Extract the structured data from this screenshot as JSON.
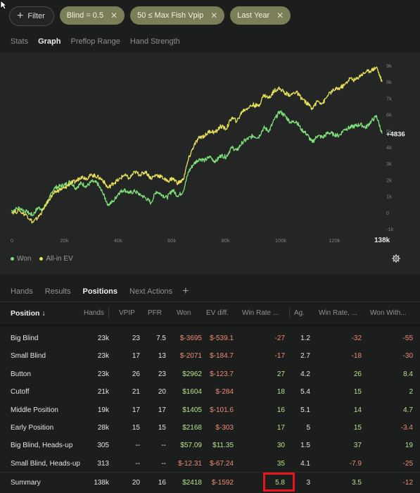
{
  "filters": {
    "filter_label": "Filter",
    "chips": [
      {
        "label": "Blind = 0.5"
      },
      {
        "label": "50 ≤ Max Fish Vpip"
      },
      {
        "label": "Last Year"
      }
    ]
  },
  "view_tabs": [
    "Stats",
    "Graph",
    "Preflop Range",
    "Hand Strength"
  ],
  "active_view_tab": "Graph",
  "chart_data": {
    "type": "line",
    "x_ticks": [
      "0",
      "20k",
      "40k",
      "60k",
      "80k",
      "100k",
      "120k",
      "138k"
    ],
    "y_ticks": [
      "9k",
      "8k",
      "7k",
      "6k",
      "5k",
      "4k",
      "3k",
      "2k",
      "1k",
      "0",
      "-1k"
    ],
    "xlim": [
      0,
      138000
    ],
    "ylim": [
      -1000,
      9000
    ],
    "end_label": "+4836",
    "series": [
      {
        "name": "Won",
        "color": "#7fe07a",
        "x": [
          0,
          3000,
          6000,
          8000,
          10000,
          12000,
          14000,
          16000,
          18000,
          20000,
          22000,
          24000,
          26000,
          28000,
          30000,
          32000,
          34000,
          36000,
          38000,
          40000,
          42000,
          44000,
          46000,
          48000,
          50000,
          52000,
          54000,
          56000,
          58000,
          60000,
          62000,
          64000,
          66000,
          68000,
          70000,
          72000,
          74000,
          76000,
          78000,
          80000,
          82000,
          84000,
          86000,
          88000,
          90000,
          92000,
          94000,
          96000,
          98000,
          100000,
          102000,
          104000,
          106000,
          108000,
          110000,
          112000,
          114000,
          116000,
          118000,
          120000,
          122000,
          124000,
          126000,
          128000,
          130000,
          132000,
          134000,
          136000,
          138000
        ],
        "y": [
          100,
          300,
          0,
          -150,
          300,
          200,
          800,
          1500,
          1600,
          1700,
          1900,
          1500,
          1800,
          1600,
          1900,
          1800,
          1200,
          500,
          700,
          1200,
          1400,
          1200,
          1300,
          1100,
          900,
          600,
          1300,
          1100,
          900,
          1400,
          1000,
          1300,
          2500,
          3000,
          3300,
          3200,
          3400,
          3100,
          3500,
          3400,
          4000,
          3800,
          4300,
          4500,
          4700,
          4600,
          5200,
          5000,
          5700,
          6200,
          5900,
          5500,
          5600,
          5100,
          4800,
          4300,
          4700,
          4600,
          4900,
          4800,
          4700,
          5100,
          5200,
          5300,
          5400,
          5200,
          5600,
          5900,
          4836
        ]
      },
      {
        "name": "All-in EV",
        "color": "#e8e05a",
        "x": [
          0,
          3000,
          6000,
          8000,
          10000,
          12000,
          14000,
          16000,
          18000,
          20000,
          22000,
          24000,
          26000,
          28000,
          30000,
          32000,
          34000,
          36000,
          38000,
          40000,
          42000,
          44000,
          46000,
          48000,
          50000,
          52000,
          54000,
          56000,
          58000,
          60000,
          62000,
          64000,
          66000,
          68000,
          70000,
          72000,
          74000,
          76000,
          78000,
          80000,
          82000,
          84000,
          86000,
          88000,
          90000,
          92000,
          94000,
          96000,
          98000,
          100000,
          102000,
          104000,
          106000,
          108000,
          110000,
          112000,
          114000,
          116000,
          118000,
          120000,
          122000,
          124000,
          126000,
          128000,
          130000,
          132000,
          134000,
          136000,
          138000
        ],
        "y": [
          0,
          100,
          -200,
          -600,
          -300,
          200,
          800,
          1200,
          1400,
          1500,
          1800,
          1900,
          2200,
          2100,
          2300,
          2200,
          2000,
          1500,
          1800,
          2000,
          2300,
          2100,
          2500,
          2300,
          2500,
          2100,
          2300,
          2200,
          1900,
          2100,
          1800,
          2000,
          3300,
          4100,
          4600,
          4700,
          5000,
          4900,
          5300,
          5100,
          5800,
          5600,
          6200,
          6400,
          6600,
          6500,
          7200,
          7000,
          7500,
          7600,
          7300,
          7200,
          7400,
          7000,
          6700,
          6400,
          6800,
          6700,
          7200,
          7500,
          7600,
          7800,
          8200,
          8100,
          8400,
          8600,
          8700,
          8900,
          8000
        ]
      }
    ]
  },
  "legend": {
    "won": "Won",
    "ev": "All-in EV"
  },
  "table_tabs": [
    "Hands",
    "Results",
    "Positions",
    "Next Actions"
  ],
  "active_table_tab": "Positions",
  "columns": {
    "position": "Position ↓",
    "hands": "Hands",
    "vpip": "VPIP",
    "pfr": "PFR",
    "won": "Won",
    "ev_diff": "EV diff.",
    "win_rate": "Win Rate ...",
    "ag": "Ag.",
    "win_rate2": "Win Rate, ...",
    "won_with": "Won With..."
  },
  "rows": [
    {
      "position": "Big Blind",
      "hands": "23k",
      "vpip": "23",
      "pfr": "7.5",
      "won": "$-3695",
      "won_c": "neg",
      "ev": "$-539.1",
      "ev_c": "neg",
      "wr": "-27",
      "wr_c": "neg",
      "ag": "1.2",
      "wr2": "-32",
      "wr2_c": "neg",
      "ww": "-55",
      "ww_c": "neg"
    },
    {
      "position": "Small Blind",
      "hands": "23k",
      "vpip": "17",
      "pfr": "13",
      "won": "$-2071",
      "won_c": "neg",
      "ev": "$-184.7",
      "ev_c": "neg",
      "wr": "-17",
      "wr_c": "neg",
      "ag": "2.7",
      "wr2": "-18",
      "wr2_c": "neg",
      "ww": "-30",
      "ww_c": "neg"
    },
    {
      "position": "Button",
      "hands": "23k",
      "vpip": "26",
      "pfr": "23",
      "won": "$2962",
      "won_c": "pos",
      "ev": "$-123.7",
      "ev_c": "neg",
      "wr": "27",
      "wr_c": "pos",
      "ag": "4.2",
      "wr2": "26",
      "wr2_c": "pos",
      "ww": "8.4",
      "ww_c": "pos"
    },
    {
      "position": "Cutoff",
      "hands": "21k",
      "vpip": "21",
      "pfr": "20",
      "won": "$1604",
      "won_c": "pos",
      "ev": "$-284",
      "ev_c": "neg",
      "wr": "18",
      "wr_c": "pos",
      "ag": "5.4",
      "wr2": "15",
      "wr2_c": "pos",
      "ww": "2",
      "ww_c": "pos"
    },
    {
      "position": "Middle Position",
      "hands": "19k",
      "vpip": "17",
      "pfr": "17",
      "won": "$1405",
      "won_c": "pos",
      "ev": "$-101.6",
      "ev_c": "neg",
      "wr": "16",
      "wr_c": "pos",
      "ag": "5.1",
      "wr2": "14",
      "wr2_c": "pos",
      "ww": "4.7",
      "ww_c": "pos"
    },
    {
      "position": "Early Position",
      "hands": "28k",
      "vpip": "15",
      "pfr": "15",
      "won": "$2168",
      "won_c": "pos",
      "ev": "$-303",
      "ev_c": "neg",
      "wr": "17",
      "wr_c": "pos",
      "ag": "5",
      "wr2": "15",
      "wr2_c": "pos",
      "ww": "-3.4",
      "ww_c": "neg"
    },
    {
      "position": "Big Blind, Heads-up",
      "hands": "305",
      "vpip": "--",
      "pfr": "--",
      "won": "$57.09",
      "won_c": "pos",
      "ev": "$11.35",
      "ev_c": "pos",
      "wr": "30",
      "wr_c": "pos",
      "ag": "1.5",
      "wr2": "37",
      "wr2_c": "pos",
      "ww": "19",
      "ww_c": "pos"
    },
    {
      "position": "Small Blind, Heads-up",
      "hands": "313",
      "vpip": "--",
      "pfr": "--",
      "won": "$-12.31",
      "won_c": "neg",
      "ev": "$-67.24",
      "ev_c": "neg",
      "wr": "35",
      "wr_c": "pos",
      "ag": "4.1",
      "wr2": "-7.9",
      "wr2_c": "neg",
      "ww": "-25",
      "ww_c": "neg"
    }
  ],
  "summary": {
    "position": "Summary",
    "hands": "138k",
    "vpip": "20",
    "pfr": "16",
    "won": "$2418",
    "won_c": "pos",
    "ev": "$-1592",
    "ev_c": "neg",
    "wr": "5.8",
    "wr_c": "pos",
    "ag": "3",
    "wr2": "3.5",
    "wr2_c": "pos",
    "ww": "-12",
    "ww_c": "neg"
  },
  "colors": {
    "accent_chip": "#7c7e58",
    "positive": "#b6e08c",
    "negative": "#ef8a74",
    "highlight": "#e8151b"
  }
}
